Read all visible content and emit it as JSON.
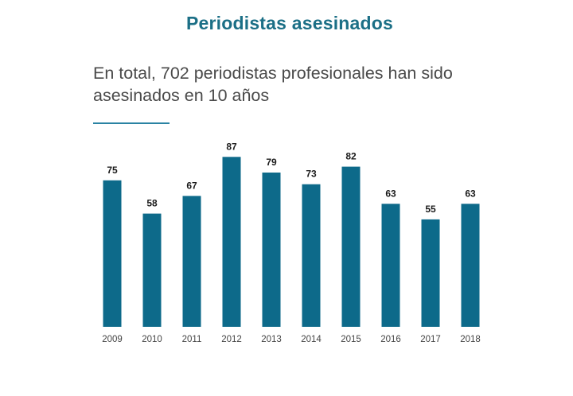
{
  "title": "Periodistas asesinados",
  "subtitle": "En total, 702 periodistas profesionales han sido asesinados en 10 años",
  "colors": {
    "title": "#1b6f86",
    "bar": "#0d6a8a",
    "accent_rule": "#2a83a3",
    "subtitle_text": "#4a4a4a"
  },
  "chart_data": {
    "type": "bar",
    "title": "Periodistas asesinados",
    "subtitle": "En total, 702 periodistas profesionales han sido asesinados en 10 años",
    "categories": [
      "2009",
      "2010",
      "2011",
      "2012",
      "2013",
      "2014",
      "2015",
      "2016",
      "2017",
      "2018"
    ],
    "values": [
      75,
      58,
      67,
      87,
      79,
      73,
      82,
      63,
      55,
      63
    ],
    "xlabel": "",
    "ylabel": "",
    "ylim": [
      0,
      100
    ],
    "grid": false,
    "legend": "none",
    "data_labels": true
  }
}
